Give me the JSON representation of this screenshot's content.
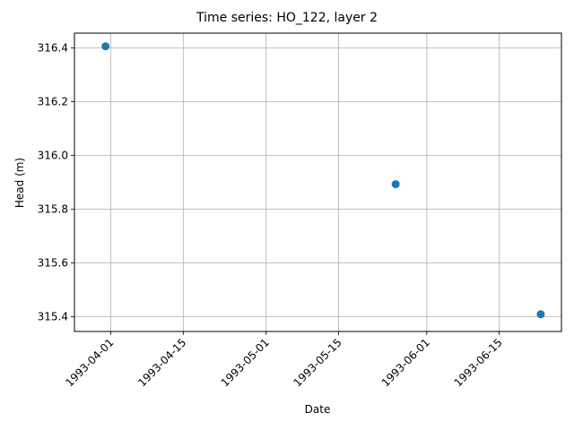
{
  "chart_data": {
    "type": "scatter",
    "title": "Time series: HO_122, layer 2",
    "xlabel": "Date",
    "ylabel": "Head (m)",
    "xlim": [
      "1993-03-25",
      "1993-06-27"
    ],
    "ylim": [
      315.345,
      316.455
    ],
    "x_ticks": [
      "1993-04-01",
      "1993-04-15",
      "1993-05-01",
      "1993-05-15",
      "1993-06-01",
      "1993-06-15"
    ],
    "y_ticks": [
      "315.4",
      "315.6",
      "315.8",
      "316.0",
      "316.2",
      "316.4"
    ],
    "grid": true,
    "color": "#1f77b4",
    "points": [
      {
        "x": "1993-03-31",
        "y": 316.406
      },
      {
        "x": "1993-05-26",
        "y": 315.893
      },
      {
        "x": "1993-06-23",
        "y": 315.409
      }
    ]
  }
}
